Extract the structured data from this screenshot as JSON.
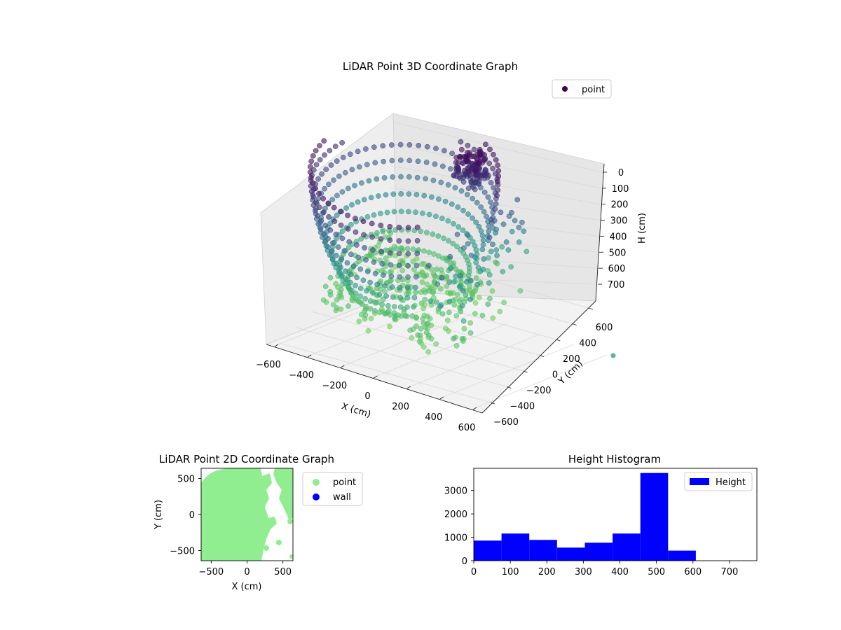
{
  "chart_data": [
    {
      "type": "scatter",
      "projection": "3d",
      "title": "LiDAR Point 3D Coordinate Graph",
      "xlabel": "X (cm)",
      "ylabel": "Y (cm)",
      "zlabel": "H (cm)",
      "xticks": [
        "−600",
        "−400",
        "−200",
        "0",
        "200",
        "400",
        "600"
      ],
      "yticks": [
        "−600",
        "−400",
        "−200",
        "0",
        "200",
        "400",
        "600"
      ],
      "zticks": [
        "0",
        "100",
        "200",
        "300",
        "400",
        "500",
        "600",
        "700"
      ],
      "xlim": [
        -600,
        600
      ],
      "ylim": [
        -600,
        600
      ],
      "zlim": [
        750,
        0
      ],
      "zaxis_inverted": true,
      "grid": true,
      "colormap": "viridis (colored by height)",
      "legend": {
        "position": "top-right",
        "entries": [
          "point"
        ]
      },
      "series": [
        {
          "name": "point",
          "description": "dome-shaped ring of LiDAR points around origin, colored purple (high) to green (low)"
        }
      ]
    },
    {
      "type": "scatter",
      "title": "LiDAR Point 2D Coordinate Graph",
      "xlabel": "X (cm)",
      "ylabel": "Y (cm)",
      "xticks": [
        "−500",
        "0",
        "500"
      ],
      "yticks": [
        "500",
        "0",
        "−500"
      ],
      "xlim": [
        -640,
        640
      ],
      "ylim": [
        -640,
        640
      ],
      "legend": {
        "position": "outside-right",
        "entries": [
          "point",
          "wall"
        ]
      },
      "series": [
        {
          "name": "point",
          "color": "#90ee90"
        },
        {
          "name": "wall",
          "color": "#0000ff"
        }
      ]
    },
    {
      "type": "bar",
      "subtype": "histogram",
      "title": "Height Histogram",
      "xticks": [
        "0",
        "100",
        "200",
        "300",
        "400",
        "500",
        "600",
        "700"
      ],
      "yticks": [
        "0",
        "1000",
        "2000",
        "3000"
      ],
      "xlim": [
        0,
        775
      ],
      "ylim": [
        0,
        3950
      ],
      "legend": {
        "position": "top-right",
        "entries": [
          "Height"
        ]
      },
      "series": [
        {
          "name": "Height",
          "color": "#0000ff",
          "bin_edges": [
            0,
            76,
            152,
            228,
            304,
            380,
            456,
            532,
            608,
            684,
            760
          ],
          "values": [
            860,
            1160,
            890,
            560,
            770,
            1160,
            3750,
            430,
            0,
            0
          ]
        }
      ]
    }
  ]
}
